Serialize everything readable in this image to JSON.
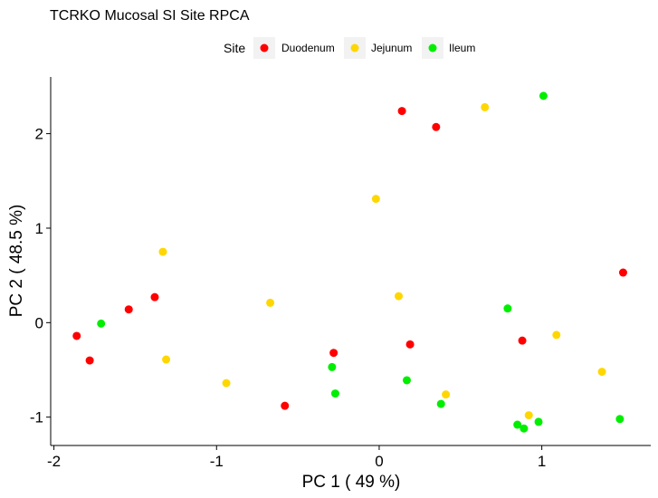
{
  "chart_data": {
    "type": "scatter",
    "title": "TCRKO Mucosal SI Site RPCA",
    "xlabel": "PC 1 ( 49 %)",
    "ylabel": "PC 2 ( 48.5 %)",
    "xlim": [
      -2.02,
      1.67
    ],
    "ylim": [
      -1.3,
      2.6
    ],
    "xticks": [
      -2,
      -1,
      0,
      1
    ],
    "yticks": [
      -1,
      0,
      1,
      2
    ],
    "xtick_labels": [
      "-2",
      "-1",
      "0",
      "1"
    ],
    "ytick_labels": [
      "-1",
      "0",
      "1",
      "2"
    ],
    "grid": false,
    "legend": {
      "title": "Site",
      "placement": "top"
    },
    "series": [
      {
        "name": "Duodenum",
        "color": "#ff0000",
        "points": [
          {
            "x": 0.14,
            "y": 2.24
          },
          {
            "x": 0.35,
            "y": 2.07
          },
          {
            "x": 1.5,
            "y": 0.53
          },
          {
            "x": -1.38,
            "y": 0.27
          },
          {
            "x": -1.54,
            "y": 0.14
          },
          {
            "x": -1.86,
            "y": -0.14
          },
          {
            "x": -1.78,
            "y": -0.4
          },
          {
            "x": -0.28,
            "y": -0.32
          },
          {
            "x": 0.19,
            "y": -0.23
          },
          {
            "x": 0.88,
            "y": -0.19
          },
          {
            "x": -0.58,
            "y": -0.88
          }
        ]
      },
      {
        "name": "Jejunum",
        "color": "#ffd700",
        "points": [
          {
            "x": 0.65,
            "y": 2.28
          },
          {
            "x": -0.02,
            "y": 1.31
          },
          {
            "x": -1.33,
            "y": 0.75
          },
          {
            "x": -0.67,
            "y": 0.21
          },
          {
            "x": 0.12,
            "y": 0.28
          },
          {
            "x": 1.09,
            "y": -0.13
          },
          {
            "x": -1.31,
            "y": -0.39
          },
          {
            "x": -0.94,
            "y": -0.64
          },
          {
            "x": 0.41,
            "y": -0.76
          },
          {
            "x": 0.92,
            "y": -0.98
          },
          {
            "x": 1.37,
            "y": -0.52
          }
        ]
      },
      {
        "name": "Ileum",
        "color": "#00ee00",
        "points": [
          {
            "x": 1.01,
            "y": 2.4
          },
          {
            "x": -1.71,
            "y": -0.01
          },
          {
            "x": 0.79,
            "y": 0.15
          },
          {
            "x": -0.29,
            "y": -0.47
          },
          {
            "x": -0.27,
            "y": -0.75
          },
          {
            "x": 0.17,
            "y": -0.61
          },
          {
            "x": 0.38,
            "y": -0.86
          },
          {
            "x": 0.85,
            "y": -1.08
          },
          {
            "x": 0.89,
            "y": -1.12
          },
          {
            "x": 0.98,
            "y": -1.05
          },
          {
            "x": 1.48,
            "y": -1.02
          }
        ]
      }
    ]
  }
}
